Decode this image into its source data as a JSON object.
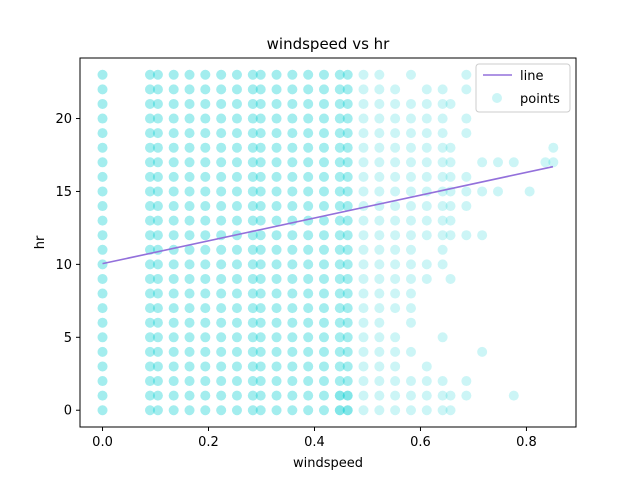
{
  "chart_data": {
    "type": "scatter",
    "title": "windspeed vs hr",
    "xlabel": "windspeed",
    "ylabel": "hr",
    "xlim": [
      -0.0425,
      0.8935
    ],
    "ylim": [
      -1.15,
      24.15
    ],
    "xticks": [
      0.0,
      0.2,
      0.4,
      0.6,
      0.8
    ],
    "xtick_labels": [
      "0.0",
      "0.2",
      "0.4",
      "0.6",
      "0.8"
    ],
    "yticks": [
      0,
      5,
      10,
      15,
      20
    ],
    "ytick_labels": [
      "0",
      "5",
      "10",
      "15",
      "20"
    ],
    "grid": false,
    "legend_position": "top-right",
    "legend": [
      {
        "label": "line",
        "kind": "line",
        "color": "#9370db"
      },
      {
        "label": "points",
        "kind": "marker",
        "color": "#00ced1"
      }
    ],
    "line": {
      "x": [
        0.0,
        0.85
      ],
      "y": [
        10.05,
        16.7
      ],
      "color": "#9370db"
    },
    "points_color": "#00ced1",
    "windspeed_columns": [
      0.0,
      0.0896,
      0.1045,
      0.1343,
      0.1642,
      0.194,
      0.2239,
      0.2537,
      0.2836,
      0.2985,
      0.3284,
      0.3582,
      0.3881,
      0.4179,
      0.4478,
      0.4627
    ],
    "full_columns_hr": [
      0,
      23
    ],
    "sparse_points": [
      {
        "x": 0.4478,
        "y": [
          0,
          1
        ]
      },
      {
        "x": 0.4627,
        "y": [
          0,
          1
        ]
      },
      {
        "x": 0.4925,
        "y": [
          0,
          1,
          2,
          3,
          4,
          5,
          6,
          7,
          8,
          9,
          10,
          11,
          12,
          13,
          14,
          15,
          16,
          17,
          18,
          19,
          20,
          21,
          22,
          23
        ]
      },
      {
        "x": 0.5224,
        "y": [
          0,
          1,
          2,
          3,
          4,
          5,
          6,
          7,
          8,
          9,
          10,
          11,
          12,
          13,
          14,
          15,
          16,
          17,
          18,
          19,
          20,
          21,
          22,
          23
        ]
      },
      {
        "x": 0.5522,
        "y": [
          0,
          1,
          2,
          3,
          4,
          5,
          7,
          8,
          9,
          10,
          11,
          12,
          13,
          14,
          15,
          16,
          17,
          18,
          19,
          20,
          21,
          22
        ]
      },
      {
        "x": 0.5821,
        "y": [
          0,
          1,
          2,
          4,
          6,
          7,
          8,
          9,
          10,
          11,
          12,
          13,
          14,
          15,
          16,
          17,
          18,
          19,
          20,
          21,
          23
        ]
      },
      {
        "x": 0.6119,
        "y": [
          0,
          1,
          2,
          3,
          9,
          10,
          12,
          13,
          14,
          15,
          16,
          17,
          18,
          19,
          20,
          21,
          22
        ]
      },
      {
        "x": 0.6418,
        "y": [
          0,
          1,
          2,
          5,
          10,
          11,
          12,
          13,
          14,
          15,
          16,
          17,
          18,
          19,
          20,
          21,
          22
        ]
      },
      {
        "x": 0.6567,
        "y": [
          0,
          1,
          9,
          12,
          13,
          14,
          15,
          16,
          17,
          18,
          21
        ]
      },
      {
        "x": 0.6866,
        "y": [
          1,
          2,
          12,
          14,
          15,
          16,
          19,
          20,
          22,
          23
        ]
      },
      {
        "x": 0.7164,
        "y": [
          4,
          12,
          15,
          17
        ]
      },
      {
        "x": 0.7463,
        "y": [
          15,
          17
        ]
      },
      {
        "x": 0.7761,
        "y": [
          1,
          17
        ]
      },
      {
        "x": 0.806,
        "y": [
          15
        ]
      },
      {
        "x": 0.8358,
        "y": [
          17
        ]
      },
      {
        "x": 0.8507,
        "y": [
          17,
          18
        ]
      }
    ]
  }
}
